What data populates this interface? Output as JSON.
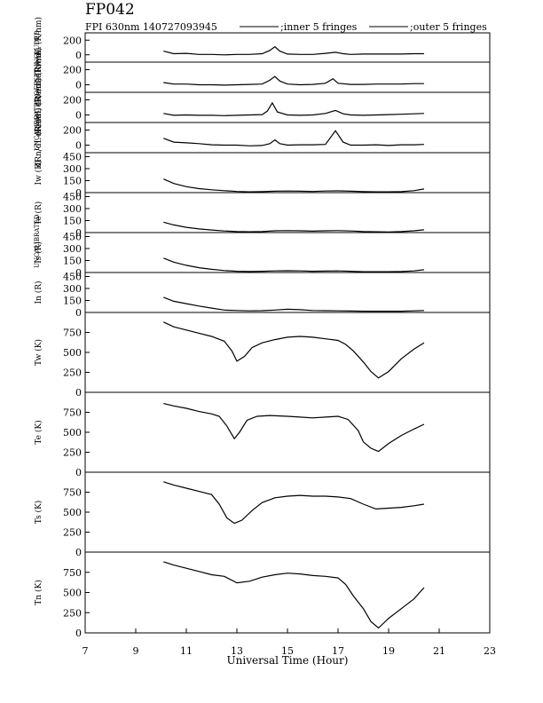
{
  "header": {
    "title": "FP042",
    "subtitle": "FPI 630nm 140727093945",
    "legend_inner": ";inner 5 fringes",
    "legend_outer": ";outer 5 fringes"
  },
  "side_labels": {
    "top": "UNCALIBRATED/OFFSET INCLUDED",
    "middle": "UNCALIBRATED"
  },
  "chart_data": {
    "type": "line",
    "xlabel": "Universal Time (Hour)",
    "xlim": [
      7,
      23
    ],
    "xticks": [
      "7",
      "9",
      "11",
      "13",
      "15",
      "17",
      "19",
      "21",
      "23"
    ],
    "panels": [
      {
        "ylabel": "dRw/dL (R/nm)",
        "ylim": [
          -100,
          300
        ],
        "yticks": [
          "200",
          "0"
        ],
        "series": [
          {
            "x": [
              10.1,
              10.5,
              11,
              11.5,
              12,
              12.5,
              13,
              13.5,
              14,
              14.3,
              14.5,
              14.7,
              15,
              15.5,
              16,
              16.5,
              16.9,
              17.2,
              17.5,
              18,
              18.5,
              19,
              19.5,
              20,
              20.4
            ],
            "y": [
              50,
              15,
              20,
              5,
              5,
              0,
              5,
              5,
              15,
              60,
              110,
              50,
              10,
              5,
              5,
              20,
              35,
              15,
              5,
              10,
              10,
              10,
              10,
              15,
              15
            ]
          }
        ]
      },
      {
        "ylabel": "dRe/dL (R/nm)",
        "ylim": [
          -100,
          300
        ],
        "yticks": [
          "200",
          "0"
        ],
        "series": [
          {
            "x": [
              10.1,
              10.5,
              11,
              11.5,
              12,
              12.5,
              13,
              13.5,
              14,
              14.3,
              14.5,
              14.7,
              15,
              15.5,
              16,
              16.5,
              16.8,
              17,
              17.5,
              18,
              18.5,
              19,
              19.5,
              20,
              20.4
            ],
            "y": [
              30,
              10,
              10,
              0,
              0,
              -5,
              0,
              5,
              10,
              60,
              110,
              50,
              10,
              0,
              5,
              20,
              80,
              20,
              5,
              5,
              10,
              10,
              10,
              15,
              15
            ]
          }
        ]
      },
      {
        "ylabel": "dRs/dL (R/nm)",
        "ylim": [
          -100,
          300
        ],
        "yticks": [
          "200",
          "0"
        ],
        "series": [
          {
            "x": [
              10.1,
              10.5,
              11,
              11.5,
              12,
              12.5,
              13,
              13.5,
              14,
              14.2,
              14.4,
              14.6,
              15,
              15.5,
              16,
              16.5,
              16.9,
              17.2,
              17.5,
              18,
              18.5,
              19,
              19.5,
              20,
              20.4
            ],
            "y": [
              20,
              -5,
              0,
              -5,
              -5,
              -10,
              -5,
              0,
              5,
              50,
              160,
              40,
              0,
              -5,
              0,
              20,
              60,
              15,
              0,
              -5,
              0,
              5,
              10,
              15,
              20
            ]
          }
        ]
      },
      {
        "ylabel": "dRn/dL (R/nm)",
        "ylim": [
          -100,
          300
        ],
        "yticks": [
          "200",
          "0"
        ],
        "series": [
          {
            "x": [
              10.1,
              10.5,
              11,
              11.5,
              12,
              12.5,
              13,
              13.5,
              14,
              14.3,
              14.5,
              14.7,
              15,
              15.5,
              16,
              16.5,
              16.9,
              17.2,
              17.5,
              18,
              18.5,
              19,
              19.5,
              20,
              20.4
            ],
            "y": [
              90,
              40,
              30,
              20,
              5,
              0,
              0,
              -10,
              -5,
              20,
              70,
              20,
              0,
              5,
              5,
              10,
              190,
              40,
              0,
              0,
              5,
              -5,
              5,
              5,
              10
            ]
          }
        ]
      },
      {
        "ylabel": "Iw (R)",
        "ylim": [
          0,
          500
        ],
        "yticks": [
          "450",
          "300",
          "150",
          "0"
        ],
        "series": [
          {
            "x": [
              10.1,
              10.5,
              11,
              11.5,
              12,
              12.5,
              13,
              13.5,
              14,
              14.5,
              15,
              15.5,
              16,
              16.5,
              17,
              17.5,
              18,
              18.5,
              19,
              19.5,
              20,
              20.4
            ],
            "y": [
              170,
              115,
              75,
              50,
              35,
              25,
              15,
              10,
              12,
              18,
              20,
              18,
              15,
              20,
              22,
              18,
              12,
              10,
              10,
              12,
              25,
              45
            ]
          }
        ]
      },
      {
        "ylabel": "Ie (R)",
        "ylim": [
          0,
          500
        ],
        "yticks": [
          "450",
          "300",
          "150",
          "0"
        ],
        "series": [
          {
            "x": [
              10.1,
              10.5,
              11,
              11.5,
              12,
              12.5,
              13,
              13.5,
              14,
              14.5,
              15,
              15.5,
              16,
              16.5,
              17,
              17.5,
              18,
              18.5,
              19,
              19.5,
              20,
              20.4
            ],
            "y": [
              130,
              95,
              65,
              45,
              32,
              20,
              12,
              10,
              12,
              22,
              25,
              22,
              18,
              22,
              25,
              20,
              12,
              10,
              8,
              12,
              22,
              35
            ]
          }
        ]
      },
      {
        "ylabel": "Is (R)",
        "ylim": [
          0,
          500
        ],
        "yticks": [
          "450",
          "300",
          "150",
          "0"
        ],
        "series": [
          {
            "x": [
              10.1,
              10.5,
              11,
              11.5,
              12,
              12.5,
              13,
              13.5,
              14,
              14.5,
              15,
              15.5,
              16,
              16.5,
              17,
              17.5,
              18,
              18.5,
              19,
              19.5,
              20,
              20.4
            ],
            "y": [
              180,
              130,
              90,
              60,
              40,
              25,
              15,
              12,
              15,
              20,
              22,
              20,
              15,
              18,
              20,
              16,
              10,
              10,
              10,
              12,
              20,
              35
            ]
          }
        ]
      },
      {
        "ylabel": "In (R)",
        "ylim": [
          0,
          500
        ],
        "yticks": [
          "450",
          "300",
          "150",
          "0"
        ],
        "series": [
          {
            "x": [
              10.1,
              10.5,
              11,
              11.5,
              12,
              12.5,
              13,
              13.5,
              14,
              14.5,
              15,
              15.5,
              16,
              16.5,
              17,
              17.5,
              18,
              18.5,
              19,
              19.5,
              20,
              20.4
            ],
            "y": [
              190,
              140,
              110,
              80,
              55,
              30,
              25,
              20,
              22,
              30,
              40,
              35,
              25,
              22,
              20,
              18,
              15,
              15,
              15,
              15,
              20,
              25
            ]
          }
        ]
      },
      {
        "ylabel": "Tw (K)",
        "ylim": [
          0,
          1000
        ],
        "yticks": [
          "750",
          "500",
          "250",
          "0"
        ],
        "series": [
          {
            "x": [
              10.1,
              10.5,
              11,
              11.5,
              12,
              12.5,
              12.8,
              13,
              13.3,
              13.6,
              14,
              14.5,
              15,
              15.5,
              16,
              16.5,
              17,
              17.3,
              17.6,
              18,
              18.3,
              18.6,
              19,
              19.5,
              20,
              20.4
            ],
            "y": [
              880,
              820,
              780,
              740,
              700,
              640,
              520,
              390,
              450,
              560,
              620,
              660,
              690,
              700,
              690,
              670,
              650,
              600,
              520,
              380,
              260,
              180,
              260,
              420,
              540,
              620
            ]
          }
        ]
      },
      {
        "ylabel": "Te (K)",
        "ylim": [
          0,
          1000
        ],
        "yticks": [
          "750",
          "500",
          "250",
          "0"
        ],
        "series": [
          {
            "x": [
              10.1,
              10.5,
              11,
              11.5,
              12,
              12.3,
              12.6,
              12.9,
              13.1,
              13.4,
              13.8,
              14.3,
              15,
              15.5,
              16,
              16.5,
              17,
              17.4,
              17.8,
              18,
              18.3,
              18.6,
              19,
              19.5,
              20,
              20.4
            ],
            "y": [
              860,
              830,
              800,
              760,
              730,
              700,
              580,
              420,
              500,
              650,
              700,
              710,
              700,
              690,
              680,
              690,
              700,
              660,
              520,
              380,
              300,
              260,
              360,
              460,
              540,
              600
            ]
          }
        ]
      },
      {
        "ylabel": "Ts (K)",
        "ylim": [
          0,
          1000
        ],
        "yticks": [
          "750",
          "500",
          "250",
          "0"
        ],
        "series": [
          {
            "x": [
              10.1,
              10.5,
              11,
              11.5,
              12,
              12.3,
              12.6,
              12.9,
              13.2,
              13.6,
              14,
              14.5,
              15,
              15.5,
              16,
              16.5,
              17,
              17.5,
              18,
              18.5,
              19,
              19.5,
              20,
              20.4
            ],
            "y": [
              880,
              840,
              800,
              760,
              720,
              600,
              430,
              360,
              400,
              520,
              620,
              680,
              700,
              710,
              700,
              700,
              690,
              670,
              600,
              540,
              550,
              560,
              580,
              600
            ]
          }
        ]
      },
      {
        "ylabel": "Tn (K)",
        "ylim": [
          0,
          1000
        ],
        "yticks": [
          "750",
          "500",
          "250",
          "0"
        ],
        "series": [
          {
            "x": [
              10.1,
              10.5,
              11,
              11.5,
              12,
              12.5,
              13,
              13.5,
              14,
              14.5,
              15,
              15.5,
              16,
              16.5,
              17,
              17.3,
              17.6,
              18,
              18.3,
              18.6,
              19,
              19.5,
              20,
              20.4
            ],
            "y": [
              880,
              840,
              800,
              760,
              720,
              700,
              620,
              640,
              690,
              720,
              740,
              730,
              710,
              700,
              680,
              600,
              460,
              300,
              140,
              60,
              180,
              300,
              420,
              560
            ]
          }
        ]
      }
    ]
  }
}
